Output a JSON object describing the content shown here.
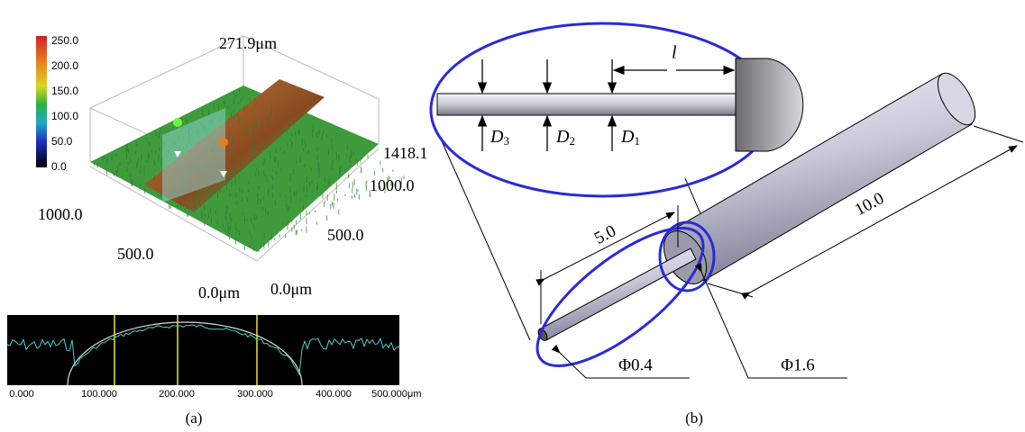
{
  "panel_a": {
    "colorbar": {
      "ticks": [
        "250.0",
        "200.0",
        "150.0",
        "100.0",
        "50.0",
        "0.0"
      ]
    },
    "surface": {
      "z_max": "271.9μm",
      "right_axis": [
        "1418.1",
        "1000.0",
        "500.0",
        "0.0μm"
      ],
      "left_axis": [
        "1000.0",
        "500.0",
        "0.0μm"
      ]
    },
    "profile": {
      "x_labels": [
        "0.000",
        "100.000",
        "200.000",
        "300.000",
        "400.000",
        "500.000"
      ],
      "unit": "μm"
    },
    "caption": "(a)"
  },
  "panel_b": {
    "inset": {
      "length": "l",
      "diameters": [
        {
          "symbol": "D",
          "index": "3"
        },
        {
          "symbol": "D",
          "index": "2"
        },
        {
          "symbol": "D",
          "index": "1"
        }
      ]
    },
    "dimensions": {
      "step_length": "5.0",
      "body_length": "10.0",
      "tip_diameter": "Φ0.4",
      "body_diameter": "Φ1.6"
    },
    "caption": "(b)"
  }
}
